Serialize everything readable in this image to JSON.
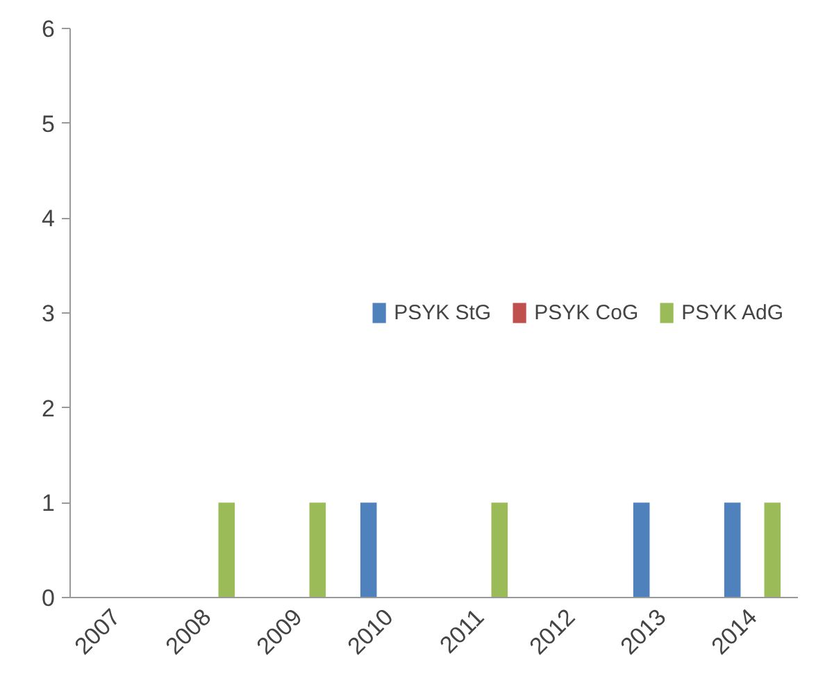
{
  "chart_data": {
    "type": "bar",
    "categories": [
      "2007",
      "2008",
      "2009",
      "2010",
      "2011",
      "2012",
      "2013",
      "2014"
    ],
    "series": [
      {
        "name": "PSYK StG",
        "color": "#4f81bd",
        "values": [
          0,
          0,
          0,
          1,
          0,
          0,
          1,
          1
        ]
      },
      {
        "name": "PSYK CoG",
        "color": "#c0504d",
        "values": [
          0,
          0,
          0,
          0,
          0,
          0,
          0,
          0
        ]
      },
      {
        "name": "PSYK AdG",
        "color": "#9bbb59",
        "values": [
          0,
          1,
          1,
          0,
          1,
          0,
          0,
          1
        ]
      }
    ],
    "ylim": [
      0,
      6
    ],
    "yticks": [
      0,
      1,
      2,
      3,
      4,
      5,
      6
    ],
    "grid": false,
    "legend": "right"
  }
}
